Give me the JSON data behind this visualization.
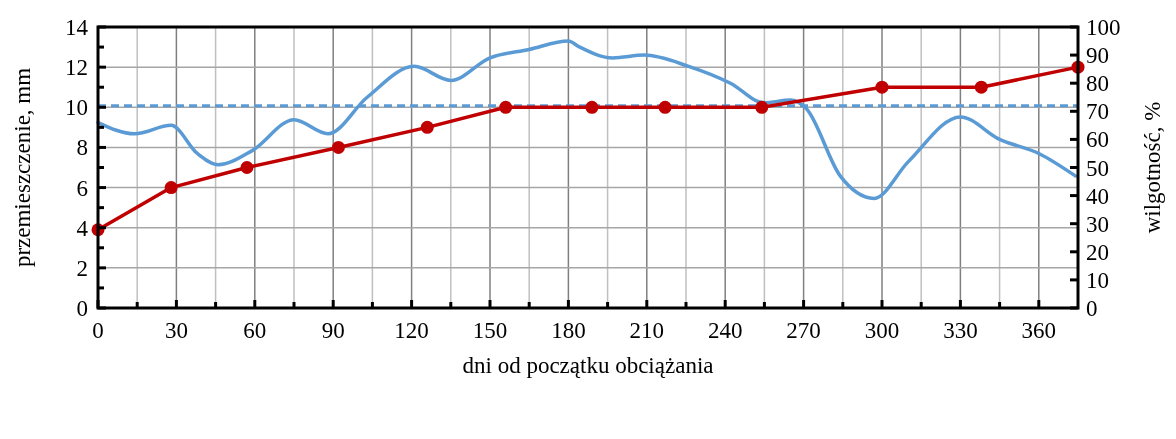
{
  "chart_data": {
    "type": "line",
    "xlabel": "dni od początku obciążania",
    "ylabel": "przemieszczenie, mm",
    "y2label": "wilgotność, %",
    "xlim": [
      0,
      375
    ],
    "xticks": [
      0,
      30,
      60,
      90,
      120,
      150,
      180,
      210,
      240,
      270,
      300,
      330,
      360
    ],
    "ylim": [
      0,
      14
    ],
    "yticks": [
      0,
      2,
      4,
      6,
      8,
      10,
      12,
      14
    ],
    "y2lim": [
      0,
      100
    ],
    "y2ticks": [
      0,
      10,
      20,
      30,
      40,
      50,
      60,
      70,
      80,
      90,
      100
    ],
    "grid": true,
    "series": [
      {
        "color": "#5b9bd5",
        "axis": "y2",
        "marker": "none",
        "x": [
          0,
          14,
          28,
          38,
          46,
          59,
          75,
          88,
          103,
          121,
          135,
          150,
          165,
          180,
          184,
          197,
          209,
          226,
          242,
          255,
          265,
          271,
          284,
          297,
          310,
          330,
          345,
          360,
          374
        ],
        "values": [
          66,
          62,
          65,
          55,
          51,
          56,
          67,
          62,
          75,
          86,
          81,
          89,
          92,
          95,
          93,
          89,
          90,
          86,
          80,
          73,
          74,
          71,
          47,
          39,
          52,
          68,
          60,
          55,
          47
        ]
      },
      {
        "color": "#c00000",
        "marker": "circle",
        "x": [
          0,
          28,
          57,
          92,
          126,
          156,
          189,
          217,
          254,
          300,
          338,
          375
        ],
        "values": [
          3.9,
          6.0,
          7.0,
          8.0,
          9.0,
          10.0,
          10.0,
          10.0,
          10.0,
          11.0,
          11.0,
          12.0
        ]
      }
    ],
    "ref_lines": [
      {
        "axis": "y2",
        "value": 72,
        "color": "#5b9bd5",
        "line_style": "dashed"
      }
    ]
  }
}
